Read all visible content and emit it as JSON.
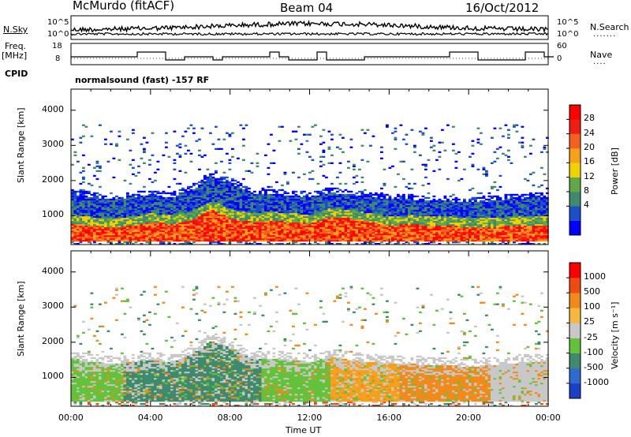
{
  "header": {
    "station": "McMurdo (fitACF)",
    "beam": "Beam 04",
    "date": "16/Oct/2012"
  },
  "top_panels": {
    "nsky_label": "N.Sky",
    "nsearch_label": "N.Search",
    "nsky_ticks": [
      "10^5",
      "10^0"
    ],
    "nsearch_ticks": [
      "10^5",
      "10^0"
    ],
    "freq_label_1": "Freq.",
    "freq_label_2": "[MHz]",
    "freq_ticks": [
      "18",
      "8"
    ],
    "nave_label": "Nave",
    "nave_ticks": [
      "60",
      "0"
    ],
    "cpid_label": "CPID",
    "cpid_value": "normalsound (fast) -157 RF"
  },
  "chart_data": [
    {
      "type": "heatmap",
      "name": "power",
      "ylabel": "Slant Range [km]",
      "y_ticks": [
        1000,
        2000,
        3000,
        4000
      ],
      "ylim": [
        180,
        4600
      ],
      "xlim": [
        0,
        24
      ],
      "colorbar_label": "Power [dB]",
      "colorbar_ticks": [
        "28",
        "24",
        "20",
        "16",
        "12",
        "8",
        "4"
      ],
      "colors": [
        "#0000ff",
        "#1a4fc8",
        "#3f8a6e",
        "#62a847",
        "#f0d200",
        "#f7a01a",
        "#f2621e",
        "#ef1d12",
        "#ff0000"
      ],
      "profile": [
        {
          "t": 0.0,
          "top": 1600,
          "core": 750
        },
        {
          "t": 1.0,
          "top": 1500,
          "core": 700
        },
        {
          "t": 2.0,
          "top": 1450,
          "core": 650
        },
        {
          "t": 3.0,
          "top": 1500,
          "core": 700
        },
        {
          "t": 4.0,
          "top": 1550,
          "core": 800
        },
        {
          "t": 5.0,
          "top": 1500,
          "core": 750
        },
        {
          "t": 6.0,
          "top": 1700,
          "core": 850
        },
        {
          "t": 7.0,
          "top": 2100,
          "core": 1150
        },
        {
          "t": 8.0,
          "top": 1900,
          "core": 900
        },
        {
          "t": 9.0,
          "top": 1600,
          "core": 800
        },
        {
          "t": 10.0,
          "top": 1600,
          "core": 850
        },
        {
          "t": 11.0,
          "top": 1550,
          "core": 800
        },
        {
          "t": 12.0,
          "top": 1500,
          "core": 750
        },
        {
          "t": 13.0,
          "top": 1650,
          "core": 950
        },
        {
          "t": 14.0,
          "top": 1550,
          "core": 900
        },
        {
          "t": 15.0,
          "top": 1500,
          "core": 800
        },
        {
          "t": 16.0,
          "top": 1450,
          "core": 700
        },
        {
          "t": 17.0,
          "top": 1450,
          "core": 750
        },
        {
          "t": 18.0,
          "top": 1400,
          "core": 700
        },
        {
          "t": 19.0,
          "top": 1400,
          "core": 700
        },
        {
          "t": 20.0,
          "top": 1350,
          "core": 650
        },
        {
          "t": 21.0,
          "top": 1400,
          "core": 650
        },
        {
          "t": 22.0,
          "top": 1450,
          "core": 700
        },
        {
          "t": 23.0,
          "top": 1500,
          "core": 700
        },
        {
          "t": 24.0,
          "top": 1500,
          "core": 700
        }
      ]
    },
    {
      "type": "heatmap",
      "name": "velocity",
      "ylabel": "Slant Range [km]",
      "xlabel": "Time UT",
      "y_ticks": [
        1000,
        2000,
        3000,
        4000
      ],
      "ylim": [
        180,
        4600
      ],
      "xlim": [
        0,
        24
      ],
      "x_ticks": [
        "00:00",
        "04:00",
        "08:00",
        "12:00",
        "16:00",
        "20:00",
        "00:00"
      ],
      "colorbar_label": "Velocity [m s⁻¹]",
      "colorbar_ticks": [
        "1000",
        "500",
        "100",
        "25",
        "-25",
        "-100",
        "-500",
        "-1000"
      ],
      "colors": [
        "#1a3fc8",
        "#2f6ad0",
        "#3f8a6e",
        "#62c23a",
        "#c8c8c8",
        "#f7b840",
        "#f28a1a",
        "#ef4a12",
        "#ff0000"
      ],
      "regimes": [
        {
          "t0": 0.0,
          "t1": 2.5,
          "color": "#62c23a"
        },
        {
          "t0": 2.5,
          "t1": 5.5,
          "color": "#3f8a6e"
        },
        {
          "t0": 5.5,
          "t1": 9.5,
          "color": "#3f8a6e"
        },
        {
          "t0": 9.5,
          "t1": 13.0,
          "color": "#62c23a"
        },
        {
          "t0": 13.0,
          "t1": 16.5,
          "color": "#f7a01a"
        },
        {
          "t0": 16.5,
          "t1": 21.0,
          "color": "#f28a1a"
        },
        {
          "t0": 21.0,
          "t1": 24.0,
          "color": "#c8c8c8"
        }
      ]
    }
  ]
}
